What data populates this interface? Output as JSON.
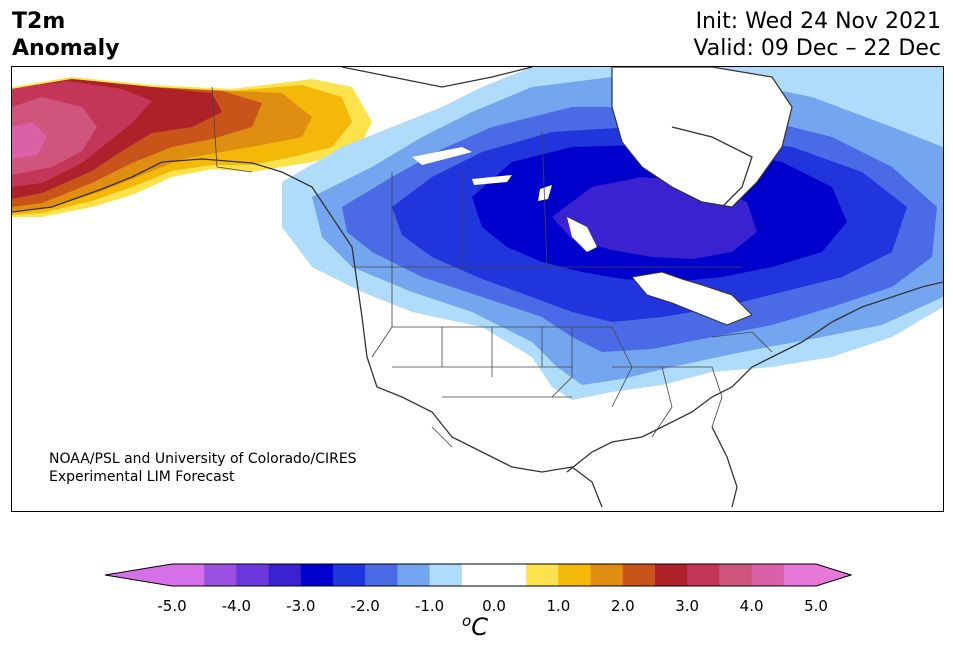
{
  "header": {
    "variable": "T2m",
    "quantity": "Anomaly",
    "init": "Init: Wed 24 Nov 2021",
    "valid": "Valid: 09 Dec – 22 Dec"
  },
  "credit": {
    "line1": "NOAA/PSL and University of Colorado/CIRES",
    "line2": "Experimental LIM Forecast"
  },
  "colorbar": {
    "unit_base": "C",
    "unit_sup": "o",
    "ticks": [
      "-5.0",
      "-4.0",
      "-3.0",
      "-2.0",
      "-1.0",
      "0.0",
      "1.0",
      "2.0",
      "3.0",
      "4.0",
      "5.0"
    ],
    "colors": [
      "#d670e8",
      "#9a50e0",
      "#6a38dc",
      "#3a22d0",
      "#0000cc",
      "#2035dc",
      "#4a6ae6",
      "#74a6f0",
      "#aedcfa",
      "#ffffff",
      "#ffffff",
      "#fce24c",
      "#f3b808",
      "#e08e12",
      "#c8541a",
      "#ae2128",
      "#c43658",
      "#d0557c",
      "#dc60a8",
      "#e878d8"
    ],
    "under_color": "#d670e8",
    "over_color": "#e878d8"
  }
}
